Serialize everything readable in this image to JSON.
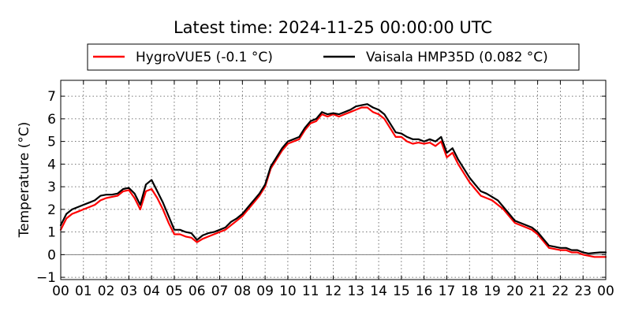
{
  "chart_data": {
    "type": "line",
    "title": "Latest time: 2024-11-25 00:00:00 UTC",
    "xlabel": "",
    "ylabel": "Temperature (°C)",
    "xlim": [
      0,
      24
    ],
    "ylim": [
      -1.1,
      7.7
    ],
    "x_tick_labels": [
      "00",
      "01",
      "02",
      "03",
      "04",
      "05",
      "06",
      "07",
      "08",
      "09",
      "10",
      "11",
      "12",
      "13",
      "14",
      "15",
      "16",
      "17",
      "18",
      "19",
      "20",
      "21",
      "22",
      "23",
      "00"
    ],
    "y_ticks": [
      -1,
      0,
      1,
      2,
      3,
      4,
      5,
      6,
      7
    ],
    "y_tick_labels": [
      "−1",
      "0",
      "1",
      "2",
      "3",
      "4",
      "5",
      "6",
      "7"
    ],
    "grid": true,
    "legend_position": "top",
    "zero_line": 0,
    "series": [
      {
        "name": "HygroVUE5 (-0.1 °C)",
        "color": "#ff0000",
        "x": [
          0,
          0.25,
          0.5,
          0.75,
          1,
          1.25,
          1.5,
          1.75,
          2,
          2.25,
          2.5,
          2.75,
          3,
          3.25,
          3.5,
          3.75,
          4,
          4.25,
          4.5,
          4.75,
          5,
          5.25,
          5.5,
          5.75,
          6,
          6.25,
          6.5,
          6.75,
          7,
          7.25,
          7.5,
          7.75,
          8,
          8.25,
          8.5,
          8.75,
          9,
          9.25,
          9.5,
          9.75,
          10,
          10.25,
          10.5,
          10.75,
          11,
          11.25,
          11.5,
          11.75,
          12,
          12.25,
          12.5,
          12.75,
          13,
          13.25,
          13.5,
          13.75,
          14,
          14.25,
          14.5,
          14.75,
          15,
          15.25,
          15.5,
          15.75,
          16,
          16.25,
          16.5,
          16.75,
          17,
          17.25,
          17.5,
          17.75,
          18,
          18.25,
          18.5,
          18.75,
          19,
          19.25,
          19.5,
          19.75,
          20,
          20.25,
          20.5,
          20.75,
          21,
          21.25,
          21.5,
          21.75,
          22,
          22.25,
          22.5,
          22.75,
          23,
          23.25,
          23.5,
          23.75,
          24
        ],
        "values": [
          1.1,
          1.6,
          1.8,
          1.9,
          2.0,
          2.1,
          2.2,
          2.4,
          2.5,
          2.55,
          2.6,
          2.8,
          2.85,
          2.5,
          2.0,
          2.8,
          2.9,
          2.5,
          2.0,
          1.4,
          0.9,
          0.9,
          0.8,
          0.75,
          0.55,
          0.7,
          0.8,
          0.9,
          1.0,
          1.1,
          1.3,
          1.5,
          1.7,
          2.0,
          2.3,
          2.6,
          3.0,
          3.8,
          4.2,
          4.6,
          4.9,
          5.0,
          5.1,
          5.5,
          5.8,
          5.9,
          6.2,
          6.1,
          6.2,
          6.1,
          6.2,
          6.3,
          6.4,
          6.5,
          6.5,
          6.3,
          6.2,
          6.0,
          5.6,
          5.2,
          5.2,
          5.0,
          4.9,
          4.95,
          4.9,
          4.95,
          4.8,
          5.0,
          4.3,
          4.5,
          4.0,
          3.6,
          3.2,
          2.9,
          2.6,
          2.5,
          2.4,
          2.2,
          2.0,
          1.7,
          1.4,
          1.3,
          1.2,
          1.1,
          0.9,
          0.6,
          0.3,
          0.25,
          0.2,
          0.2,
          0.1,
          0.1,
          0.0,
          -0.05,
          -0.1,
          -0.1,
          -0.1
        ]
      },
      {
        "name": "Vaisala HMP35D (0.082 °C)",
        "color": "#000000",
        "x": [
          0,
          0.25,
          0.5,
          0.75,
          1,
          1.25,
          1.5,
          1.75,
          2,
          2.25,
          2.5,
          2.75,
          3,
          3.25,
          3.5,
          3.75,
          4,
          4.25,
          4.5,
          4.75,
          5,
          5.25,
          5.5,
          5.75,
          6,
          6.25,
          6.5,
          6.75,
          7,
          7.25,
          7.5,
          7.75,
          8,
          8.25,
          8.5,
          8.75,
          9,
          9.25,
          9.5,
          9.75,
          10,
          10.25,
          10.5,
          10.75,
          11,
          11.25,
          11.5,
          11.75,
          12,
          12.25,
          12.5,
          12.75,
          13,
          13.25,
          13.5,
          13.75,
          14,
          14.25,
          14.5,
          14.75,
          15,
          15.25,
          15.5,
          15.75,
          16,
          16.25,
          16.5,
          16.75,
          17,
          17.25,
          17.5,
          17.75,
          18,
          18.25,
          18.5,
          18.75,
          19,
          19.25,
          19.5,
          19.75,
          20,
          20.25,
          20.5,
          20.75,
          21,
          21.25,
          21.5,
          21.75,
          22,
          22.25,
          22.5,
          22.75,
          23,
          23.25,
          23.5,
          23.75,
          24
        ],
        "values": [
          1.3,
          1.8,
          2.0,
          2.1,
          2.2,
          2.3,
          2.4,
          2.6,
          2.65,
          2.65,
          2.7,
          2.9,
          2.95,
          2.7,
          2.2,
          3.1,
          3.3,
          2.8,
          2.3,
          1.7,
          1.1,
          1.1,
          1.0,
          0.95,
          0.65,
          0.85,
          0.95,
          1.0,
          1.1,
          1.2,
          1.45,
          1.6,
          1.8,
          2.1,
          2.4,
          2.7,
          3.1,
          3.9,
          4.3,
          4.7,
          5.0,
          5.1,
          5.2,
          5.6,
          5.9,
          6.0,
          6.3,
          6.2,
          6.25,
          6.2,
          6.3,
          6.4,
          6.55,
          6.6,
          6.65,
          6.5,
          6.4,
          6.2,
          5.8,
          5.4,
          5.35,
          5.2,
          5.1,
          5.1,
          5.0,
          5.1,
          5.0,
          5.2,
          4.5,
          4.7,
          4.2,
          3.8,
          3.4,
          3.1,
          2.8,
          2.7,
          2.55,
          2.4,
          2.1,
          1.8,
          1.5,
          1.4,
          1.3,
          1.2,
          1.0,
          0.7,
          0.4,
          0.35,
          0.3,
          0.3,
          0.2,
          0.2,
          0.1,
          0.05,
          0.08,
          0.1,
          0.1
        ]
      }
    ]
  }
}
